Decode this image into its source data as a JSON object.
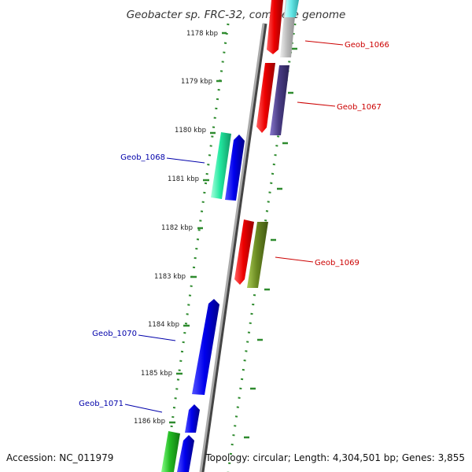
{
  "title": "Geobacter sp. FRC-32, complete genome",
  "accession": "Accession: NC_011979",
  "topology": "Topology: circular; Length: 4,304,501 bp; Genes: 3,855",
  "ticks": [
    "1178 kbp",
    "1179 kbp",
    "1180 kbp",
    "1181 kbp",
    "1182 kbp",
    "1183 kbp",
    "1184 kbp",
    "1185 kbp",
    "1186 kbp"
  ],
  "genes": [
    {
      "label": "Geob_1066",
      "strand": "right",
      "color": "#cc0000"
    },
    {
      "label": "Geob_1067",
      "strand": "right",
      "color": "#cc0000"
    },
    {
      "label": "Geob_1068",
      "strand": "left",
      "color": "#0000aa"
    },
    {
      "label": "Geob_1069",
      "strand": "right",
      "color": "#cc0000"
    },
    {
      "label": "Geob_1070",
      "strand": "left",
      "color": "#0000aa"
    },
    {
      "label": "Geob_1071",
      "strand": "left",
      "color": "#0000aa"
    }
  ],
  "colors": {
    "backbone": "#888888",
    "dots": "#2e8b2e",
    "red": "#ee0000",
    "blue": "#0000ee",
    "teal": "#22e8a0",
    "green": "#22bb22",
    "purple": "#4a3d85",
    "olive": "#6b8a22",
    "gray": "#b8b8b8",
    "cyan": "#66e8e8"
  }
}
